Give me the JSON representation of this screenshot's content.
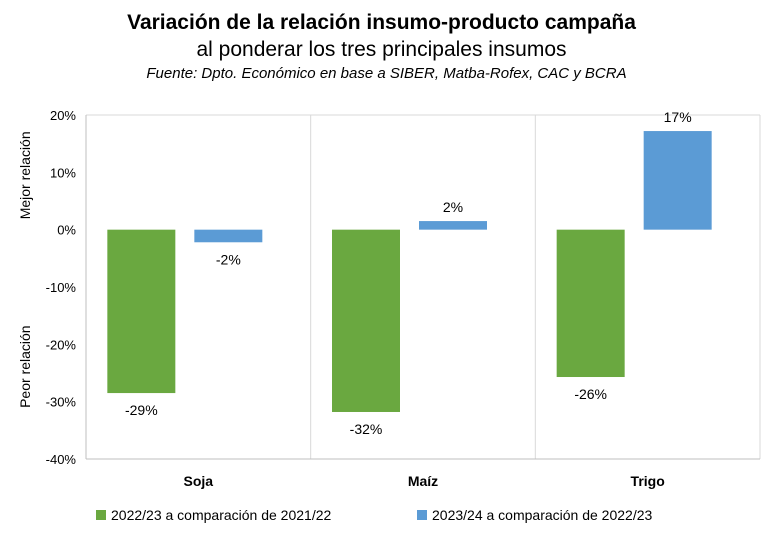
{
  "chart_data": {
    "type": "bar",
    "title": "Variación de la relación insumo-producto campaña",
    "subtitle": "al ponderar los tres principales insumos",
    "source": "Fuente: Dpto. Económico en base a SIBER, Matba-Rofex, CAC y BCRA",
    "categories": [
      "Soja",
      "Maíz",
      "Trigo"
    ],
    "series": [
      {
        "name": "2022/23 a comparación de 2021/22",
        "color": "#6aa840",
        "values": [
          -0.285,
          -0.318,
          -0.257
        ],
        "labels": [
          "-29%",
          "-32%",
          "-26%"
        ]
      },
      {
        "name": "2023/24 a comparación de 2022/23",
        "color": "#5b9bd5",
        "values": [
          -0.022,
          0.015,
          0.172
        ],
        "labels": [
          "-2%",
          "2%",
          "17%"
        ]
      }
    ],
    "ylim": [
      -0.4,
      0.2
    ],
    "yticks": [
      0.2,
      0.1,
      0,
      -0.1,
      -0.2,
      -0.3,
      -0.4
    ],
    "ytick_labels": [
      "20%",
      "10%",
      "0%",
      "-10%",
      "-20%",
      "-30%",
      "-40%"
    ],
    "ylabel_top": "Mejor relación",
    "ylabel_bottom": "Peor relación",
    "xlabel": "",
    "legend_position": "bottom",
    "grid": "vertical category separators"
  }
}
